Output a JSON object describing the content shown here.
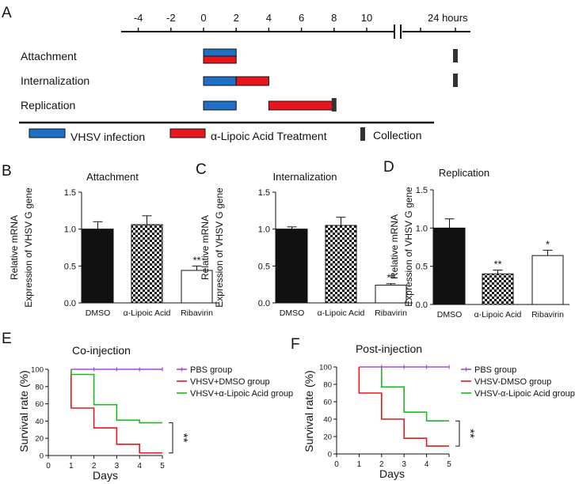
{
  "colors": {
    "infection": "#1f6fc5",
    "treatment": "#e8171f",
    "collection": "#333333",
    "pbs": "#a64ad6",
    "dmso": "#e8171f",
    "lipoic": "#21b521",
    "axis": "#111111"
  },
  "panel_letters": [
    "A",
    "B",
    "C",
    "D",
    "E",
    "F"
  ],
  "timeline": {
    "ticks": [
      "-4",
      "-2",
      "0",
      "2",
      "4",
      "6",
      "8",
      "10"
    ],
    "hours_label": "24 hours",
    "rows": [
      {
        "label": "Attachment",
        "infection": [
          0,
          2
        ],
        "treatment": [
          0,
          2
        ],
        "collection": 24
      },
      {
        "label": "Internalization",
        "infection": [
          0,
          2
        ],
        "treatment": [
          2,
          4
        ],
        "collection": 24
      },
      {
        "label": "Replication",
        "infection": [
          0,
          2
        ],
        "treatment": [
          4,
          8
        ],
        "collection": 8
      }
    ],
    "legend": {
      "infection": "VHSV infection",
      "treatment": "α-Lipoic Acid Treatment",
      "collection": "Collection"
    }
  },
  "chart_data": [
    {
      "type": "bar",
      "title": "Attachment",
      "ylabel": [
        "Relative mRNA",
        "Expression of VHSV G gene"
      ],
      "categories": [
        "DMSO",
        "α-Lipoic Acid",
        "Ribavirin"
      ],
      "values": [
        1.0,
        1.06,
        0.44
      ],
      "errors": [
        0.1,
        0.12,
        0.06
      ],
      "significance": [
        "",
        "",
        "**"
      ],
      "ylim": [
        0,
        1.5
      ],
      "yticks": [
        "0.0",
        "0.5",
        "1.0",
        "1.5"
      ]
    },
    {
      "type": "bar",
      "title": "Internalization",
      "ylabel": [
        "Relative mRNA",
        "Expression of VHSV G gene"
      ],
      "categories": [
        "DMSO",
        "α-Lipoic Acid",
        "Ribavirin"
      ],
      "values": [
        1.0,
        1.05,
        0.24
      ],
      "errors": [
        0.03,
        0.11,
        0.02
      ],
      "significance": [
        "",
        "",
        "**"
      ],
      "ylim": [
        0,
        1.5
      ],
      "yticks": [
        "0.0",
        "0.5",
        "1.0",
        "1.5"
      ]
    },
    {
      "type": "bar",
      "title": "Replication",
      "ylabel": [
        "Relative mRNA",
        "Expression of VHSV G gene"
      ],
      "categories": [
        "DMSO",
        "α-Lipoic Acid",
        "Ribavirin"
      ],
      "values": [
        1.0,
        0.4,
        0.64
      ],
      "errors": [
        0.12,
        0.05,
        0.07
      ],
      "significance": [
        "",
        "**",
        "*"
      ],
      "ylim": [
        0,
        1.5
      ],
      "yticks": [
        "0.0",
        "0.5",
        "1.0",
        "1.5"
      ]
    },
    {
      "type": "line",
      "title": "Co-injection",
      "xlabel": "Days",
      "ylabel": "Survival rate (%)",
      "x": [
        0,
        1,
        2,
        3,
        4,
        5
      ],
      "xlim": [
        0,
        5
      ],
      "ylim": [
        0,
        100
      ],
      "xticks": [
        "0",
        "1",
        "2",
        "3",
        "4",
        "5"
      ],
      "yticks": [
        "0",
        "20",
        "40",
        "60",
        "80",
        "100"
      ],
      "significance": "**",
      "series": [
        {
          "name": "PBS group",
          "points": [
            [
              1,
              100
            ],
            [
              5,
              100
            ]
          ]
        },
        {
          "name": "VHSV+DMSO group",
          "points": [
            [
              1,
              100
            ],
            [
              1,
              55
            ],
            [
              2,
              55
            ],
            [
              2,
              32
            ],
            [
              3,
              32
            ],
            [
              3,
              13
            ],
            [
              4,
              13
            ],
            [
              4,
              3
            ],
            [
              5,
              3
            ]
          ]
        },
        {
          "name": "VHSV+α-Lipoic Acid  group",
          "points": [
            [
              1,
              100
            ],
            [
              1,
              94
            ],
            [
              2,
              94
            ],
            [
              2,
              59
            ],
            [
              3,
              59
            ],
            [
              3,
              41
            ],
            [
              4,
              41
            ],
            [
              4,
              38
            ],
            [
              5,
              38
            ]
          ]
        }
      ]
    },
    {
      "type": "line",
      "title": "Post-injection",
      "xlabel": "Days",
      "ylabel": "Survival rate (%)",
      "x": [
        0,
        1,
        2,
        3,
        4,
        5
      ],
      "xlim": [
        0,
        5
      ],
      "ylim": [
        0,
        100
      ],
      "xticks": [
        "0",
        "1",
        "2",
        "3",
        "4",
        "5"
      ],
      "yticks": [
        "0",
        "20",
        "40",
        "60",
        "80",
        "100"
      ],
      "significance": "**",
      "series": [
        {
          "name": "PBS group",
          "points": [
            [
              1,
              100
            ],
            [
              5,
              100
            ]
          ]
        },
        {
          "name": "VHSV-DMSO group",
          "points": [
            [
              1,
              100
            ],
            [
              1,
              70
            ],
            [
              2,
              70
            ],
            [
              2,
              40
            ],
            [
              3,
              40
            ],
            [
              3,
              18
            ],
            [
              4,
              18
            ],
            [
              4,
              9
            ],
            [
              5,
              9
            ]
          ]
        },
        {
          "name": "VHSV-α-Lipoic Acid  group",
          "points": [
            [
              2,
              100
            ],
            [
              2,
              77
            ],
            [
              3,
              77
            ],
            [
              3,
              48
            ],
            [
              4,
              48
            ],
            [
              4,
              38
            ],
            [
              5,
              38
            ]
          ]
        }
      ]
    }
  ]
}
